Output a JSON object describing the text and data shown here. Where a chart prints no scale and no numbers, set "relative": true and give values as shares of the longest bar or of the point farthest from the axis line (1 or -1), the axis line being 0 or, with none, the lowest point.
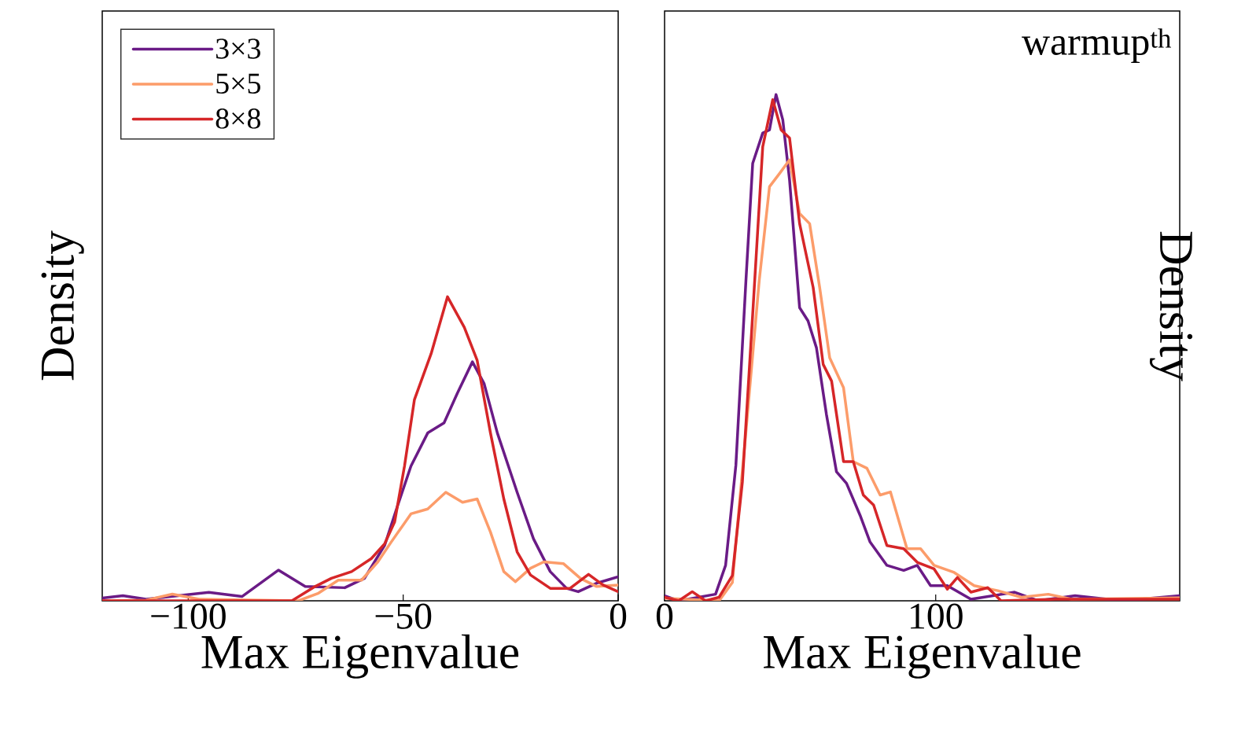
{
  "chart_data": [
    {
      "type": "line",
      "relative": true,
      "xlabel": "Max Eigenvalue",
      "ylabel": "Density",
      "legend": "top left",
      "xlim": [
        -120,
        0
      ],
      "xticks": [
        {
          "value": -100,
          "label": "−100"
        },
        {
          "value": -50,
          "label": "−50"
        },
        0
      ],
      "series": [
        {
          "name": "3×3",
          "color": "#6a1b86",
          "x": [
            -120,
            -115.2,
            -109.8,
            -95.2,
            -87.5,
            -79,
            -72.8,
            -63.6,
            -59,
            -54.3,
            -51.3,
            -48.2,
            -44.3,
            -40.5,
            -37.4,
            -33.9,
            -31.2,
            -28.1,
            -23.5,
            -19.7,
            -15.8,
            -12,
            -9.3,
            -5,
            0
          ],
          "values": [
            0.009,
            0.017,
            0.005,
            0.028,
            0.014,
            0.101,
            0.047,
            0.043,
            0.074,
            0.183,
            0.313,
            0.443,
            0.552,
            0.585,
            0.683,
            0.786,
            0.715,
            0.552,
            0.357,
            0.204,
            0.096,
            0.041,
            0.03,
            0.058,
            0.079
          ]
        },
        {
          "name": "5×5",
          "color": "#fc9c6a",
          "x": [
            -120,
            -109.8,
            -103.7,
            -97.5,
            -74.4,
            -69.7,
            -65.1,
            -59.7,
            -55.9,
            -52.8,
            -48.2,
            -44.3,
            -40.1,
            -36.2,
            -32.8,
            -29.7,
            -26.6,
            -23.9,
            -20.4,
            -17.3,
            -12.7,
            -8.8,
            -5,
            0
          ],
          "values": [
            0,
            0.002,
            0.022,
            0.005,
            0,
            0.025,
            0.068,
            0.068,
            0.128,
            0.193,
            0.286,
            0.302,
            0.357,
            0.324,
            0.335,
            0.226,
            0.096,
            0.063,
            0.107,
            0.128,
            0.122,
            0.074,
            0.047,
            0.052
          ]
        },
        {
          "name": "8×8",
          "color": "#d62628",
          "x": [
            -120,
            -75.9,
            -70.5,
            -66.7,
            -62,
            -57.4,
            -54.3,
            -52,
            -49.7,
            -47.4,
            -43.5,
            -39.7,
            -35.8,
            -32.8,
            -29.7,
            -26.6,
            -23.5,
            -20.4,
            -15.8,
            -11.2,
            -6.9,
            -3.5,
            0
          ],
          "values": [
            0,
            0,
            0.047,
            0.074,
            0.096,
            0.139,
            0.188,
            0.259,
            0.443,
            0.661,
            0.813,
            1,
            0.9,
            0.791,
            0.552,
            0.335,
            0.161,
            0.085,
            0.041,
            0.041,
            0.087,
            0.052,
            0.03
          ]
        }
      ]
    },
    {
      "type": "line",
      "relative": true,
      "xlabel": "Max Eigenvalue",
      "ylabel": "Density",
      "annotations": [
        "warmup$^{th}$"
      ],
      "xlim": [
        0,
        190
      ],
      "xticks": [
        0,
        100
      ],
      "series": [
        {
          "color": "#6a1b86",
          "x": [
            0,
            5.2,
            18.8,
            22.5,
            26.3,
            30,
            32.5,
            36.2,
            38.7,
            41.1,
            43.6,
            46.1,
            49.8,
            52.9,
            56,
            59.7,
            63.4,
            67.1,
            72.1,
            75.8,
            82,
            88.2,
            93.2,
            98.1,
            104.3,
            113,
            129.1,
            137.8,
            151.4,
            168.7,
            190
          ],
          "values": [
            0.01,
            0,
            0.013,
            0.07,
            0.268,
            0.632,
            0.864,
            0.924,
            0.93,
            1,
            0.95,
            0.831,
            0.579,
            0.553,
            0.5,
            0.368,
            0.255,
            0.232,
            0.169,
            0.116,
            0.07,
            0.06,
            0.07,
            0.03,
            0.03,
            0.003,
            0.017,
            0,
            0.01,
            0,
            0.01
          ]
        },
        {
          "color": "#fc9c6a",
          "x": [
            0,
            20.1,
            25,
            30,
            34.9,
            38.7,
            42.4,
            46.1,
            49.8,
            53.5,
            57.2,
            60.9,
            66,
            69.6,
            74.6,
            79.5,
            83.3,
            89.4,
            94.4,
            99.4,
            106.8,
            114.2,
            122.9,
            131.6,
            141.5,
            150.1,
            190
          ],
          "values": [
            0.005,
            0,
            0.036,
            0.334,
            0.632,
            0.818,
            0.844,
            0.871,
            0.765,
            0.745,
            0.619,
            0.48,
            0.421,
            0.275,
            0.262,
            0.209,
            0.215,
            0.103,
            0.103,
            0.07,
            0.056,
            0.03,
            0.02,
            0.007,
            0.013,
            0.003,
            0.006
          ]
        },
        {
          "color": "#d62628",
          "x": [
            0,
            5.2,
            10.2,
            15.1,
            20.1,
            25,
            28.7,
            32.5,
            36.2,
            39.9,
            43,
            46.1,
            49.8,
            54.8,
            58.5,
            61.6,
            66,
            69.6,
            73.3,
            77.1,
            82,
            88.2,
            93.2,
            99.4,
            104.3,
            108,
            113,
            119.2,
            124.1,
            144,
            190
          ],
          "values": [
            0.007,
            0,
            0.018,
            0,
            0.007,
            0.05,
            0.235,
            0.566,
            0.897,
            0.99,
            0.93,
            0.914,
            0.745,
            0.619,
            0.467,
            0.434,
            0.275,
            0.275,
            0.209,
            0.189,
            0.109,
            0.103,
            0.076,
            0.063,
            0.023,
            0.046,
            0.017,
            0.026,
            0,
            0.003,
            0.003
          ]
        }
      ]
    }
  ]
}
